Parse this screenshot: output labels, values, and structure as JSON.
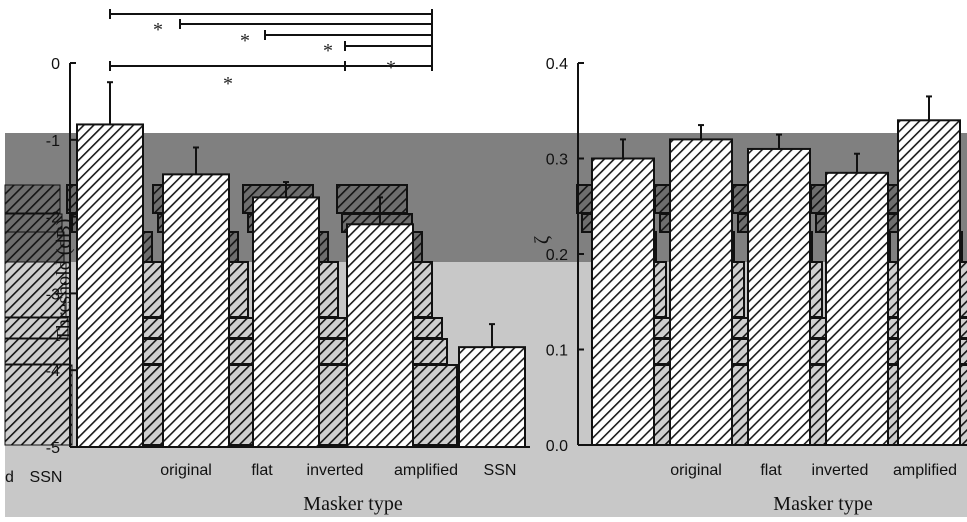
{
  "chart_data": [
    {
      "type": "bar",
      "categories": [
        "SSN",
        "original",
        "flat",
        "inverted",
        "amplified",
        "SSN"
      ],
      "values": [
        -0.8,
        -1.45,
        -1.75,
        -2.1,
        -2.0,
        -3.7
      ],
      "errors": [
        0.55,
        0.35,
        0.2,
        0.35,
        0.3,
        0.3
      ],
      "ylabel": "Threshold (dB)",
      "xlabel": "Masker type",
      "ylim": [
        -5,
        0
      ],
      "yticks": [
        "0",
        "-1",
        "-2",
        "-3",
        "-4",
        "-5"
      ],
      "significance": [
        {
          "from": "SSN",
          "to": "amplified",
          "label": ""
        },
        {
          "from": "original",
          "to": "amplified",
          "label": "*"
        },
        {
          "from": "flat",
          "to": "amplified",
          "label": "*"
        },
        {
          "from": "inverted",
          "to": "amplified",
          "label": "*"
        },
        {
          "from": "SSN",
          "to": "inverted",
          "label": "*"
        },
        {
          "from": "inverted",
          "to": "amplified",
          "label": "*"
        }
      ]
    },
    {
      "type": "bar",
      "categories": [
        "original",
        "flat",
        "inverted",
        "amplified",
        "SSN"
      ],
      "values": [
        0.3,
        0.32,
        0.31,
        0.285,
        0.34
      ],
      "errors": [
        0.02,
        0.015,
        0.015,
        0.02,
        0.025
      ],
      "ylabel": "ζ",
      "xlabel": "Masker type",
      "ylim": [
        0.0,
        0.4
      ],
      "yticks": [
        "0.4",
        "0.3",
        "0.2",
        "0.1",
        "0.0"
      ]
    }
  ],
  "layers": {
    "band_top": "#808080",
    "band_mid": "#c8c8c8",
    "band_dark": "#5a5a5a"
  }
}
